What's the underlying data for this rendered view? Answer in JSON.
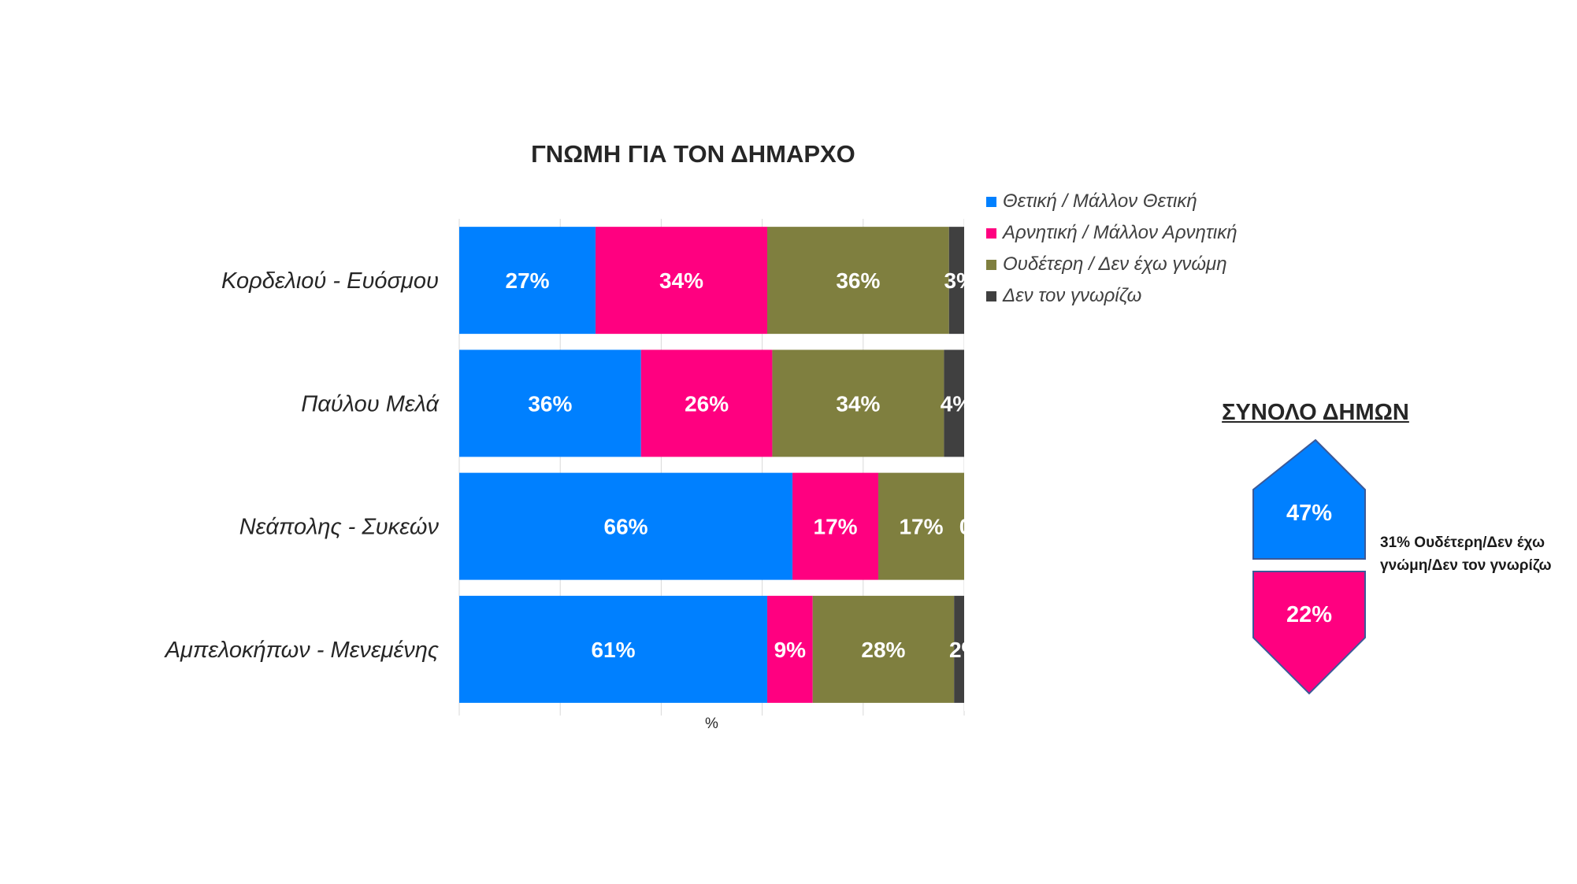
{
  "chart_data": {
    "type": "bar",
    "orientation": "horizontal",
    "stacked": true,
    "title": "ΓΝΩΜΗ ΓΙΑ ΤΟΝ ΔΗΜΑΡΧΟ",
    "xlabel": "%",
    "xlim": [
      0,
      100
    ],
    "grid": true,
    "legend_position": "top-right",
    "categories": [
      "Κορδελιού - Ευόσμου",
      "Παύλου Μελά",
      "Νεάπολης - Συκεών",
      "Αμπελοκήπων - Μενεμένης"
    ],
    "series": [
      {
        "name": "Θετική / Μάλλον Θετική",
        "color": "#0080FF",
        "values": [
          27,
          36,
          66,
          61
        ]
      },
      {
        "name": "Αρνητική / Μάλλον Αρνητική",
        "color": "#FF0080",
        "values": [
          34,
          26,
          17,
          9
        ]
      },
      {
        "name": "Ουδέτερη / Δεν έχω γνώμη",
        "color": "#7F7F3F",
        "values": [
          36,
          34,
          17,
          28
        ]
      },
      {
        "name": "Δεν τον γνωρίζω",
        "color": "#404040",
        "values": [
          3,
          4,
          0,
          2
        ]
      }
    ]
  },
  "summary": {
    "title": "ΣΥΝΟΛΟ ΔΗΜΩΝ",
    "positive_value": "47%",
    "negative_value": "22%",
    "positive_color": "#0080FF",
    "negative_color": "#FF0080",
    "note": "31% Ουδέτερη/Δεν έχω γνώμη/Δεν τον γνωρίζω"
  }
}
